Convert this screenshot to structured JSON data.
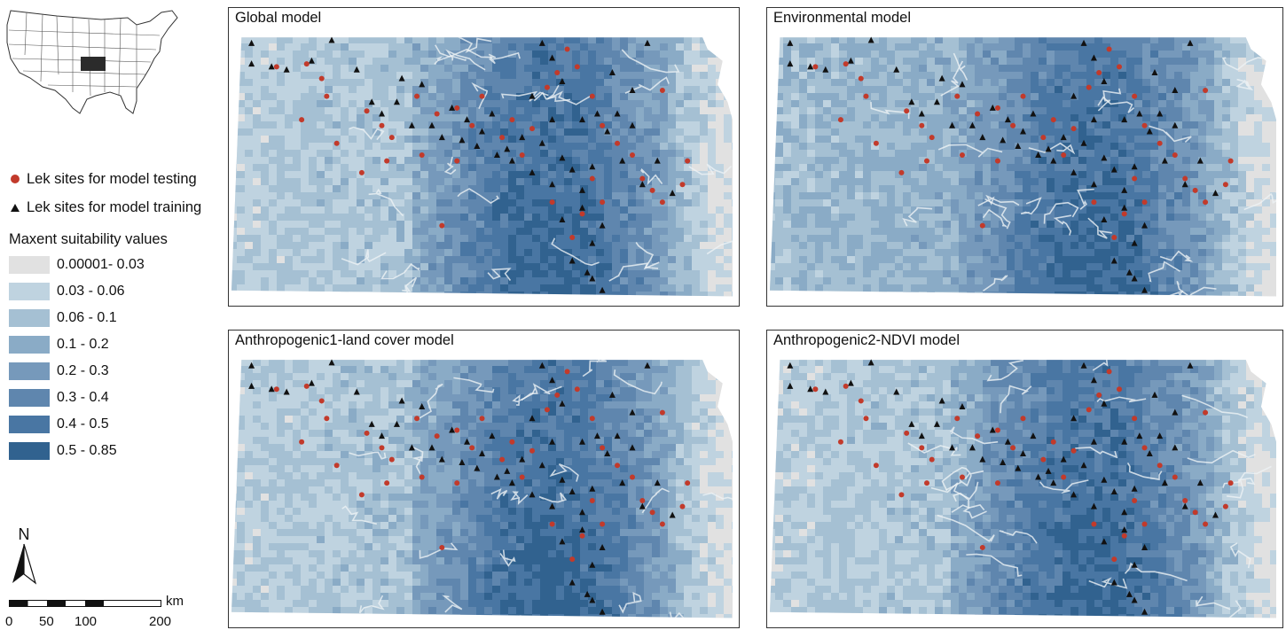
{
  "inset": {
    "icon": "usa-inset-map-icon",
    "highlight_color": "#2b2b2b"
  },
  "legend": {
    "testing_label": "Lek sites for model testing",
    "training_label": "Lek sites for model training",
    "testing_color": "#c23a2b",
    "training_color": "#111111",
    "suitability_title": "Maxent suitability values",
    "classes": [
      {
        "label": "0.00001- 0.03",
        "color": "#e1e1e1"
      },
      {
        "label": "0.03 - 0.06",
        "color": "#bfd3e0"
      },
      {
        "label": "0.06 - 0.1",
        "color": "#a5c0d3"
      },
      {
        "label": "0.1 - 0.2",
        "color": "#8aabc6"
      },
      {
        "label": "0.2 - 0.3",
        "color": "#7699bb"
      },
      {
        "label": "0.3 - 0.4",
        "color": "#5f86ae"
      },
      {
        "label": "0.4 - 0.5",
        "color": "#4976a3"
      },
      {
        "label": "0.5 - 0.85",
        "color": "#31628f"
      }
    ]
  },
  "north_arrow": {
    "label": "N",
    "icon": "north-arrow-icon"
  },
  "scale_bar": {
    "unit": "km",
    "ticks": [
      "0",
      "50",
      "100",
      "200"
    ]
  },
  "panels": [
    {
      "title": "Global model"
    },
    {
      "title": "Environmental model"
    },
    {
      "title": "Anthropogenic1-land cover model"
    },
    {
      "title": "Anthropogenic2-NDVI model"
    }
  ]
}
